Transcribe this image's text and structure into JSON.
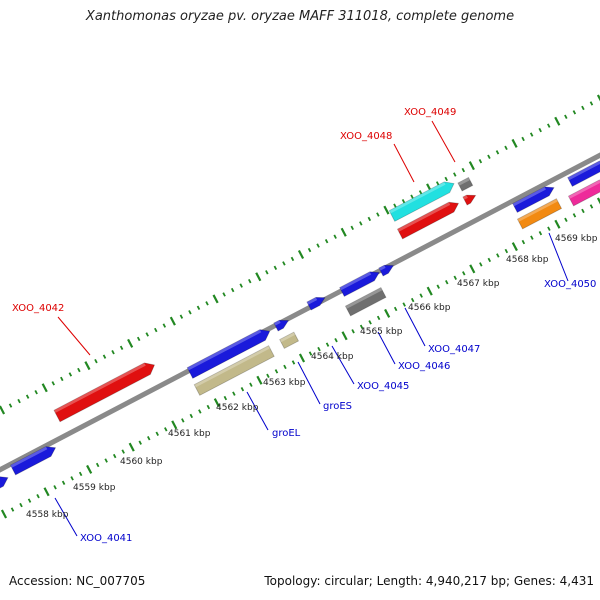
{
  "title": "Xanthomonas oryzae pv. oryzae MAFF 311018, complete genome",
  "accession_label": "Accession: NC_007705",
  "topology_label": "Topology: circular; Length: 4,940,217 bp; Genes: 4,431",
  "colors": {
    "axis": "#888888",
    "ticks": "#228822",
    "forward_label": "#dd0000",
    "reverse_label": "#0000cc",
    "blue": "#1a1adb",
    "red": "#e01010",
    "cyan": "#22e0e0",
    "gray": "#6f6f6f",
    "khaki": "#c2b98a",
    "orange": "#f28a12",
    "magenta": "#ee2a9a"
  },
  "kbp_ticks": [
    "4558 kbp",
    "4559 kbp",
    "4560 kbp",
    "4561 kbp",
    "4562 kbp",
    "4563 kbp",
    "4564 kbp",
    "4565 kbp",
    "4566 kbp",
    "4567 kbp",
    "4568 kbp",
    "4569 kbp"
  ],
  "forward_labels": [
    "XOO_4042",
    "XOO_4048",
    "XOO_4049"
  ],
  "reverse_labels": [
    "XOO_4041",
    "groEL",
    "groES",
    "XOO_4045",
    "XOO_4046",
    "XOO_4047",
    "XOO_4050"
  ]
}
